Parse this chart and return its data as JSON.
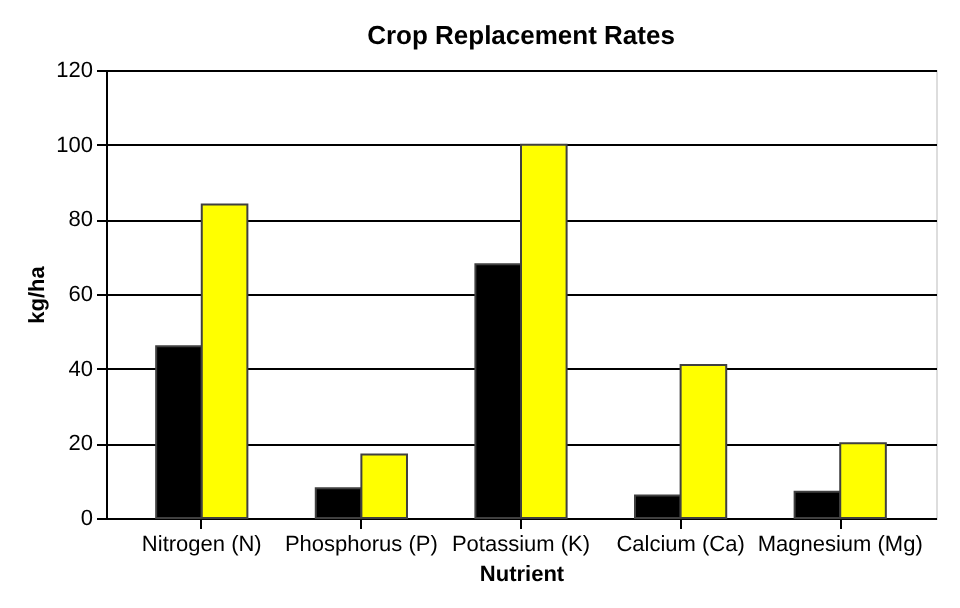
{
  "chart_data": {
    "type": "bar",
    "title": "Crop Replacement Rates",
    "xlabel": "Nutrient",
    "ylabel": "kg/ha",
    "categories": [
      "Nitrogen (N)",
      "Phosphorus (P)",
      "Potassium (K)",
      "Calcium (Ca)",
      "Magnesium (Mg)"
    ],
    "series": [
      {
        "color": "#000000",
        "values": [
          46,
          8,
          68,
          6,
          7
        ]
      },
      {
        "color": "#ffff00",
        "values": [
          84,
          17,
          100,
          41,
          20
        ]
      }
    ],
    "ylim": [
      0,
      120
    ],
    "yticks": [
      0,
      20,
      40,
      60,
      80,
      100,
      120
    ],
    "grid": "y",
    "legend": false
  }
}
